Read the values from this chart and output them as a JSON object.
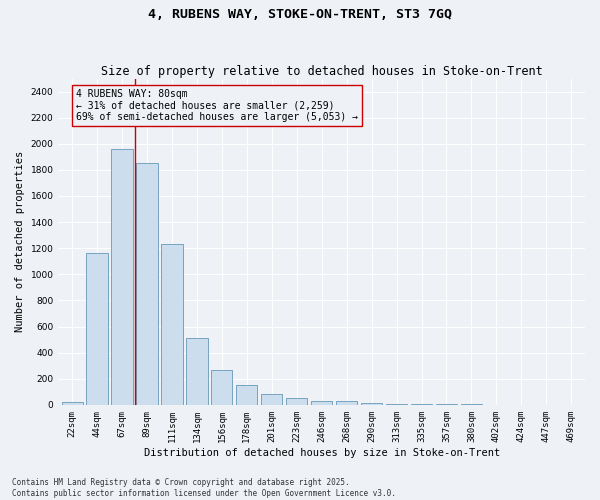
{
  "title": "4, RUBENS WAY, STOKE-ON-TRENT, ST3 7GQ",
  "subtitle": "Size of property relative to detached houses in Stoke-on-Trent",
  "xlabel": "Distribution of detached houses by size in Stoke-on-Trent",
  "ylabel": "Number of detached properties",
  "categories": [
    "22sqm",
    "44sqm",
    "67sqm",
    "89sqm",
    "111sqm",
    "134sqm",
    "156sqm",
    "178sqm",
    "201sqm",
    "223sqm",
    "246sqm",
    "268sqm",
    "290sqm",
    "313sqm",
    "335sqm",
    "357sqm",
    "380sqm",
    "402sqm",
    "424sqm",
    "447sqm",
    "469sqm"
  ],
  "values": [
    25,
    1160,
    1960,
    1850,
    1230,
    515,
    270,
    155,
    85,
    50,
    30,
    28,
    15,
    10,
    6,
    4,
    3,
    2,
    2,
    1,
    1
  ],
  "bar_color": "#ccdded",
  "bar_edge_color": "#6699bb",
  "vline_x_index": 2.5,
  "vline_color": "#cc0000",
  "annotation_text": "4 RUBENS WAY: 80sqm\n← 31% of detached houses are smaller (2,259)\n69% of semi-detached houses are larger (5,053) →",
  "annotation_box_color": "#cc0000",
  "ylim": [
    0,
    2500
  ],
  "yticks": [
    0,
    200,
    400,
    600,
    800,
    1000,
    1200,
    1400,
    1600,
    1800,
    2000,
    2200,
    2400
  ],
  "bg_color": "#eef2f7",
  "footer_text": "Contains HM Land Registry data © Crown copyright and database right 2025.\nContains public sector information licensed under the Open Government Licence v3.0.",
  "title_fontsize": 9.5,
  "subtitle_fontsize": 8.5,
  "axis_label_fontsize": 7.5,
  "tick_fontsize": 6.5,
  "annotation_fontsize": 7,
  "footer_fontsize": 5.5
}
